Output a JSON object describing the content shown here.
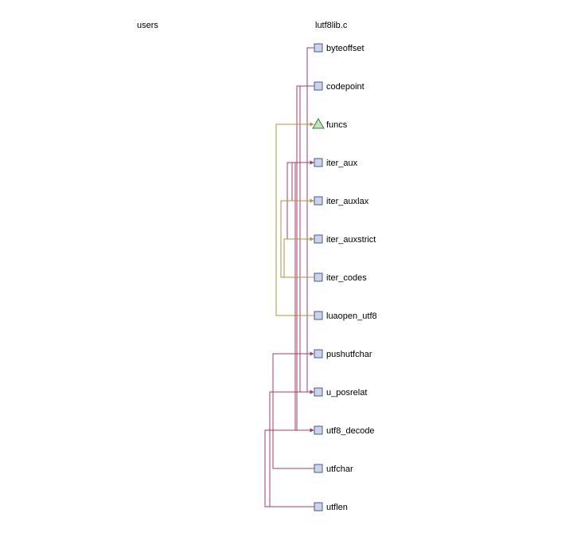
{
  "columns": {
    "users_title": "users",
    "file_title": "lutf8lib.c"
  },
  "colors": {
    "call_edge": "#a03c6c",
    "ref_edge": "#b8903c",
    "function_fill": "#c8d4ee",
    "function_stroke": "#4a5a88",
    "variable_fill": "#bfe3bf",
    "variable_stroke": "#3c7a3c"
  },
  "nodes": [
    {
      "id": "byteoffset",
      "label": "byteoffset",
      "kind": "function"
    },
    {
      "id": "codepoint",
      "label": "codepoint",
      "kind": "function"
    },
    {
      "id": "funcs",
      "label": "funcs",
      "kind": "variable"
    },
    {
      "id": "iter_aux",
      "label": "iter_aux",
      "kind": "function"
    },
    {
      "id": "iter_auxlax",
      "label": "iter_auxlax",
      "kind": "function"
    },
    {
      "id": "iter_auxstrict",
      "label": "iter_auxstrict",
      "kind": "function"
    },
    {
      "id": "iter_codes",
      "label": "iter_codes",
      "kind": "function"
    },
    {
      "id": "luaopen_utf8",
      "label": "luaopen_utf8",
      "kind": "function"
    },
    {
      "id": "pushutfchar",
      "label": "pushutfchar",
      "kind": "function"
    },
    {
      "id": "u_posrelat",
      "label": "u_posrelat",
      "kind": "function"
    },
    {
      "id": "utf8_decode",
      "label": "utf8_decode",
      "kind": "function"
    },
    {
      "id": "utfchar",
      "label": "utfchar",
      "kind": "function"
    },
    {
      "id": "utflen",
      "label": "utflen",
      "kind": "function"
    }
  ],
  "edges": [
    {
      "from": "byteoffset",
      "to": "u_posrelat",
      "kind": "call"
    },
    {
      "from": "codepoint",
      "to": "u_posrelat",
      "kind": "call"
    },
    {
      "from": "codepoint",
      "to": "utf8_decode",
      "kind": "call"
    },
    {
      "from": "luaopen_utf8",
      "to": "funcs",
      "kind": "ref"
    },
    {
      "from": "iter_auxlax",
      "to": "iter_aux",
      "kind": "call"
    },
    {
      "from": "iter_auxstrict",
      "to": "iter_aux",
      "kind": "call"
    },
    {
      "from": "iter_aux",
      "to": "utf8_decode",
      "kind": "call"
    },
    {
      "from": "iter_codes",
      "to": "iter_auxlax",
      "kind": "ref"
    },
    {
      "from": "iter_codes",
      "to": "iter_auxstrict",
      "kind": "ref"
    },
    {
      "from": "utfchar",
      "to": "pushutfchar",
      "kind": "call"
    },
    {
      "from": "utflen",
      "to": "u_posrelat",
      "kind": "call"
    },
    {
      "from": "utflen",
      "to": "utf8_decode",
      "kind": "call"
    }
  ]
}
